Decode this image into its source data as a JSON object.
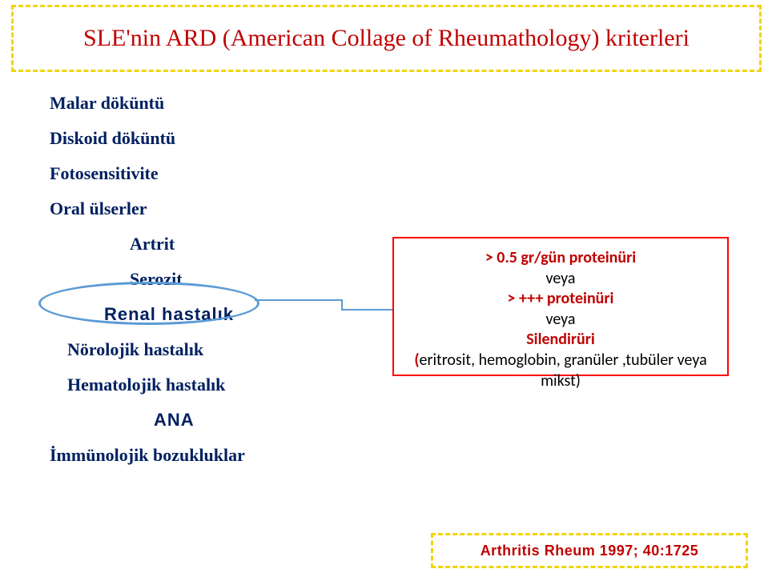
{
  "title": "SLE'nin ARD (American Collage of Rheumathology) kriterleri",
  "criteria": {
    "c0": "Malar  döküntü",
    "c1": "Diskoid  döküntü",
    "c2": "Fotosensitivite",
    "c3": "Oral  ülserler",
    "c4": "Artrit",
    "c5": "Serozit",
    "c6": "Renal hastalık",
    "c7": "Nörolojik  hastalık",
    "c8": "Hematolojik  hastalık",
    "c9": "ANA",
    "c10": "İmmünolojik  bozukluklar"
  },
  "details": {
    "l0": "> 0.5 gr/gün proteinüri",
    "l1": "veya",
    "l2": "> +++ proteinüri",
    "l3": "veya",
    "l4": "Silendirüri",
    "l5a": "(",
    "l5b": "eritrosit, hemoglobin, granüler ,tubüler veya mikst)"
  },
  "citation": "Arthritis Rheum 1997; 40:1725",
  "colors": {
    "title_text": "#c00000",
    "criteria_text": "#002060",
    "title_border": "#f2d400",
    "details_border": "#ff0000",
    "callout_border": "#5b9bd5",
    "background": "#ffffff"
  }
}
